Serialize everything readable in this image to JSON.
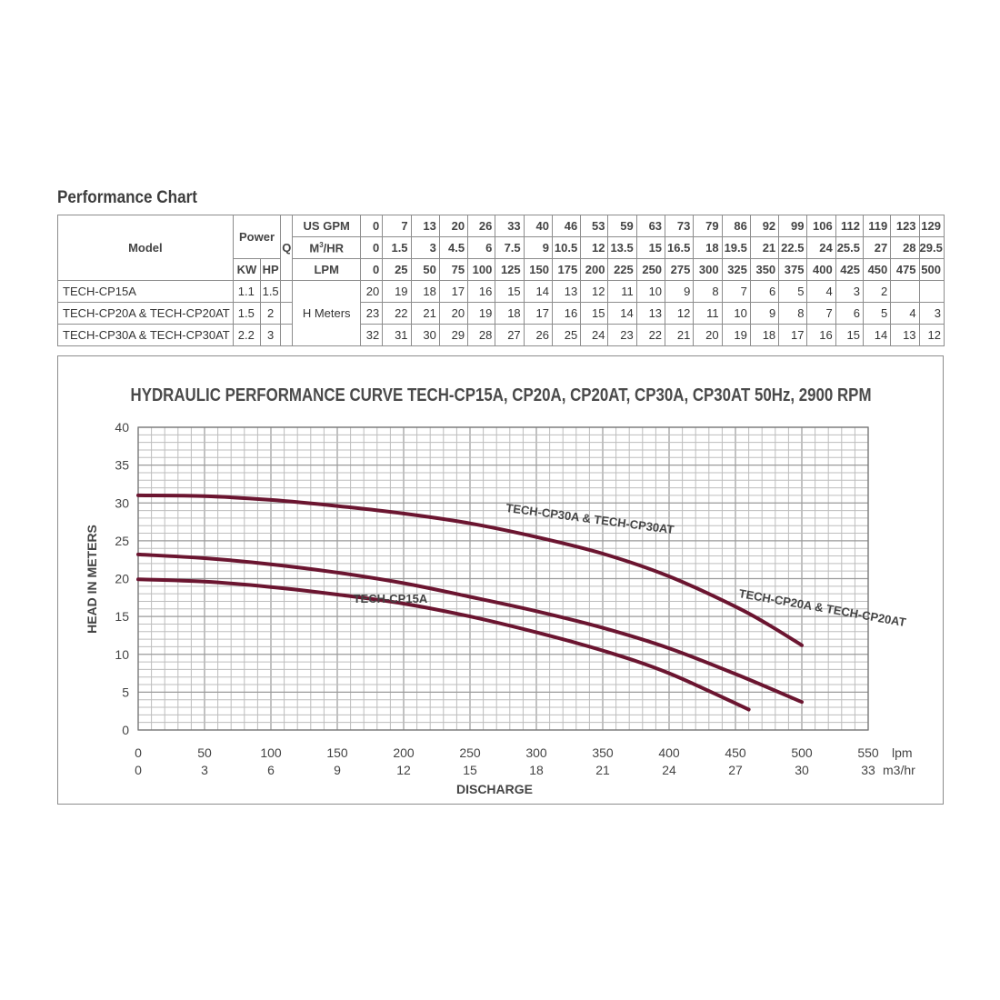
{
  "section_title": "Performance Chart",
  "table": {
    "model_header": "Model",
    "power_header": "Power",
    "kw_header": "KW",
    "hp_header": "HP",
    "q_header": "Q",
    "usgpm_label": "US GPM",
    "m3hr_label_main": "M",
    "m3hr_label_sup": "3",
    "m3hr_label_tail": "/HR",
    "lpm_label": "LPM",
    "hmeters_label": "H Meters",
    "us_gpm": [
      "0",
      "7",
      "13",
      "20",
      "26",
      "33",
      "40",
      "46",
      "53",
      "59",
      "63",
      "73",
      "79",
      "86",
      "92",
      "99",
      "106",
      "112",
      "119",
      "123",
      "129"
    ],
    "m3_hr": [
      "0",
      "1.5",
      "3",
      "4.5",
      "6",
      "7.5",
      "9",
      "10.5",
      "12",
      "13.5",
      "15",
      "16.5",
      "18",
      "19.5",
      "21",
      "22.5",
      "24",
      "25.5",
      "27",
      "28",
      "29.5"
    ],
    "lpm": [
      "0",
      "25",
      "50",
      "75",
      "100",
      "125",
      "150",
      "175",
      "200",
      "225",
      "250",
      "275",
      "300",
      "325",
      "350",
      "375",
      "400",
      "425",
      "450",
      "475",
      "500"
    ],
    "rows": [
      {
        "model": "TECH-CP15A",
        "kw": "1.1",
        "hp": "1.5",
        "values": [
          "20",
          "19",
          "18",
          "17",
          "16",
          "15",
          "14",
          "13",
          "12",
          "11",
          "10",
          "9",
          "8",
          "7",
          "6",
          "5",
          "4",
          "3",
          "2",
          "",
          ""
        ]
      },
      {
        "model": "TECH-CP20A & TECH-CP20AT",
        "kw": "1.5",
        "hp": "2",
        "values": [
          "23",
          "22",
          "21",
          "20",
          "19",
          "18",
          "17",
          "16",
          "15",
          "14",
          "13",
          "12",
          "11",
          "10",
          "9",
          "8",
          "7",
          "6",
          "5",
          "4",
          "3"
        ]
      },
      {
        "model": "TECH-CP30A & TECH-CP30AT",
        "kw": "2.2",
        "hp": "3",
        "values": [
          "32",
          "31",
          "30",
          "29",
          "28",
          "27",
          "26",
          "25",
          "24",
          "23",
          "22",
          "21",
          "20",
          "19",
          "18",
          "17",
          "16",
          "15",
          "14",
          "13",
          "12"
        ]
      }
    ]
  },
  "chart_data": {
    "type": "line",
    "title": "HYDRAULIC PERFORMANCE CURVE TECH-CP15A, CP20A, CP20AT, CP30A, CP30AT 50Hz, 2900 RPM",
    "ylabel": "HEAD IN METERS",
    "xlabel": "DISCHARGE",
    "x_unit_primary": "lpm",
    "x_unit_secondary": "m3/hr",
    "xlim": [
      0,
      550
    ],
    "ylim": [
      0,
      40
    ],
    "x_ticks": [
      0,
      50,
      100,
      150,
      200,
      250,
      300,
      350,
      400,
      450,
      500,
      550
    ],
    "x_ticks_secondary": [
      "0",
      "3",
      "6",
      "9",
      "12",
      "15",
      "18",
      "21",
      "24",
      "27",
      "30",
      "33"
    ],
    "y_ticks": [
      0,
      5,
      10,
      15,
      20,
      25,
      30,
      35,
      40
    ],
    "grid": true,
    "curve_color": "#6b1530",
    "series": [
      {
        "name": "TECH-CP30A & TECH-CP30AT",
        "x": [
          0,
          50,
          100,
          150,
          200,
          250,
          300,
          350,
          400,
          450,
          475,
          500
        ],
        "y": [
          31.0,
          30.9,
          30.4,
          29.6,
          28.6,
          27.3,
          25.5,
          23.3,
          20.3,
          16.3,
          13.9,
          11.2
        ]
      },
      {
        "name": "TECH-CP20A & TECH-CP20AT",
        "x": [
          0,
          50,
          100,
          150,
          200,
          250,
          300,
          350,
          400,
          450,
          500
        ],
        "y": [
          23.2,
          22.7,
          21.9,
          20.8,
          19.4,
          17.6,
          15.7,
          13.5,
          10.8,
          7.4,
          3.7
        ]
      },
      {
        "name": "TECH-CP15A",
        "x": [
          0,
          50,
          100,
          150,
          200,
          250,
          300,
          350,
          400,
          460
        ],
        "y": [
          19.9,
          19.6,
          18.9,
          17.9,
          16.7,
          15.0,
          12.9,
          10.5,
          7.5,
          2.7
        ]
      }
    ]
  }
}
